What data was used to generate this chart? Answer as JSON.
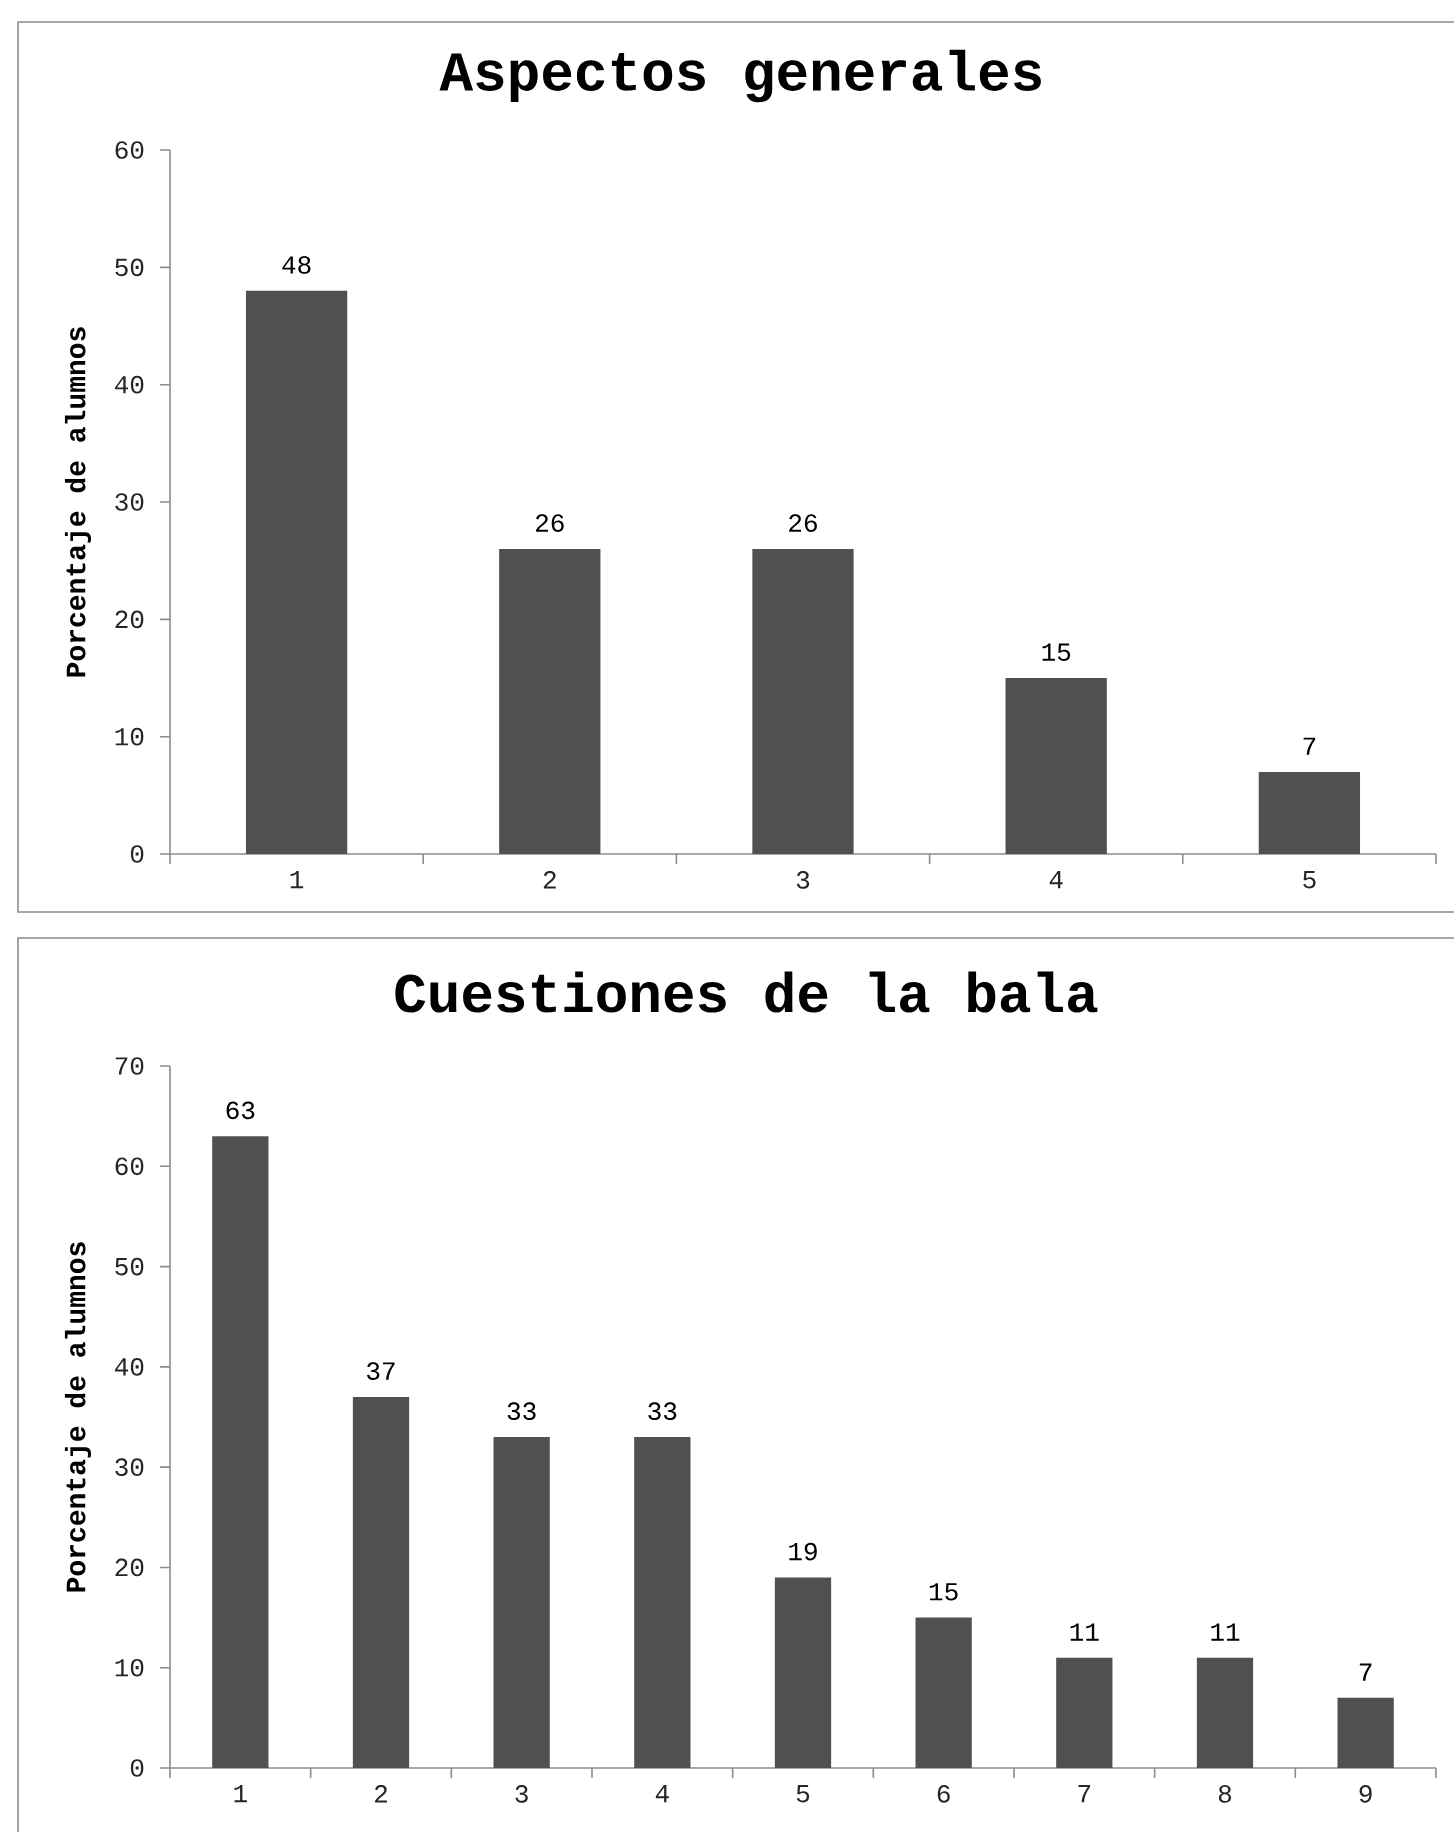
{
  "chart_data": [
    {
      "type": "bar",
      "title": "Aspectos generales",
      "ylabel": "Porcentaje de alumnos",
      "categories": [
        "1",
        "2",
        "3",
        "4",
        "5"
      ],
      "values": [
        48,
        26,
        26,
        15,
        7
      ],
      "color": "#505050",
      "ylim": [
        0,
        60
      ],
      "yticks": [
        0,
        10,
        20,
        30,
        40,
        50,
        60
      ],
      "data_labels": true
    },
    {
      "type": "bar",
      "title": "Cuestiones de la bala",
      "ylabel": "Porcentaje de alumnos",
      "categories": [
        "1",
        "2",
        "3",
        "4",
        "5",
        "6",
        "7",
        "8",
        "9"
      ],
      "values": [
        63,
        37,
        33,
        33,
        19,
        15,
        11,
        11,
        7
      ],
      "color": "#505050",
      "ylim": [
        0,
        70
      ],
      "yticks": [
        0,
        10,
        20,
        30,
        40,
        50,
        60,
        70
      ],
      "data_labels": true
    }
  ]
}
